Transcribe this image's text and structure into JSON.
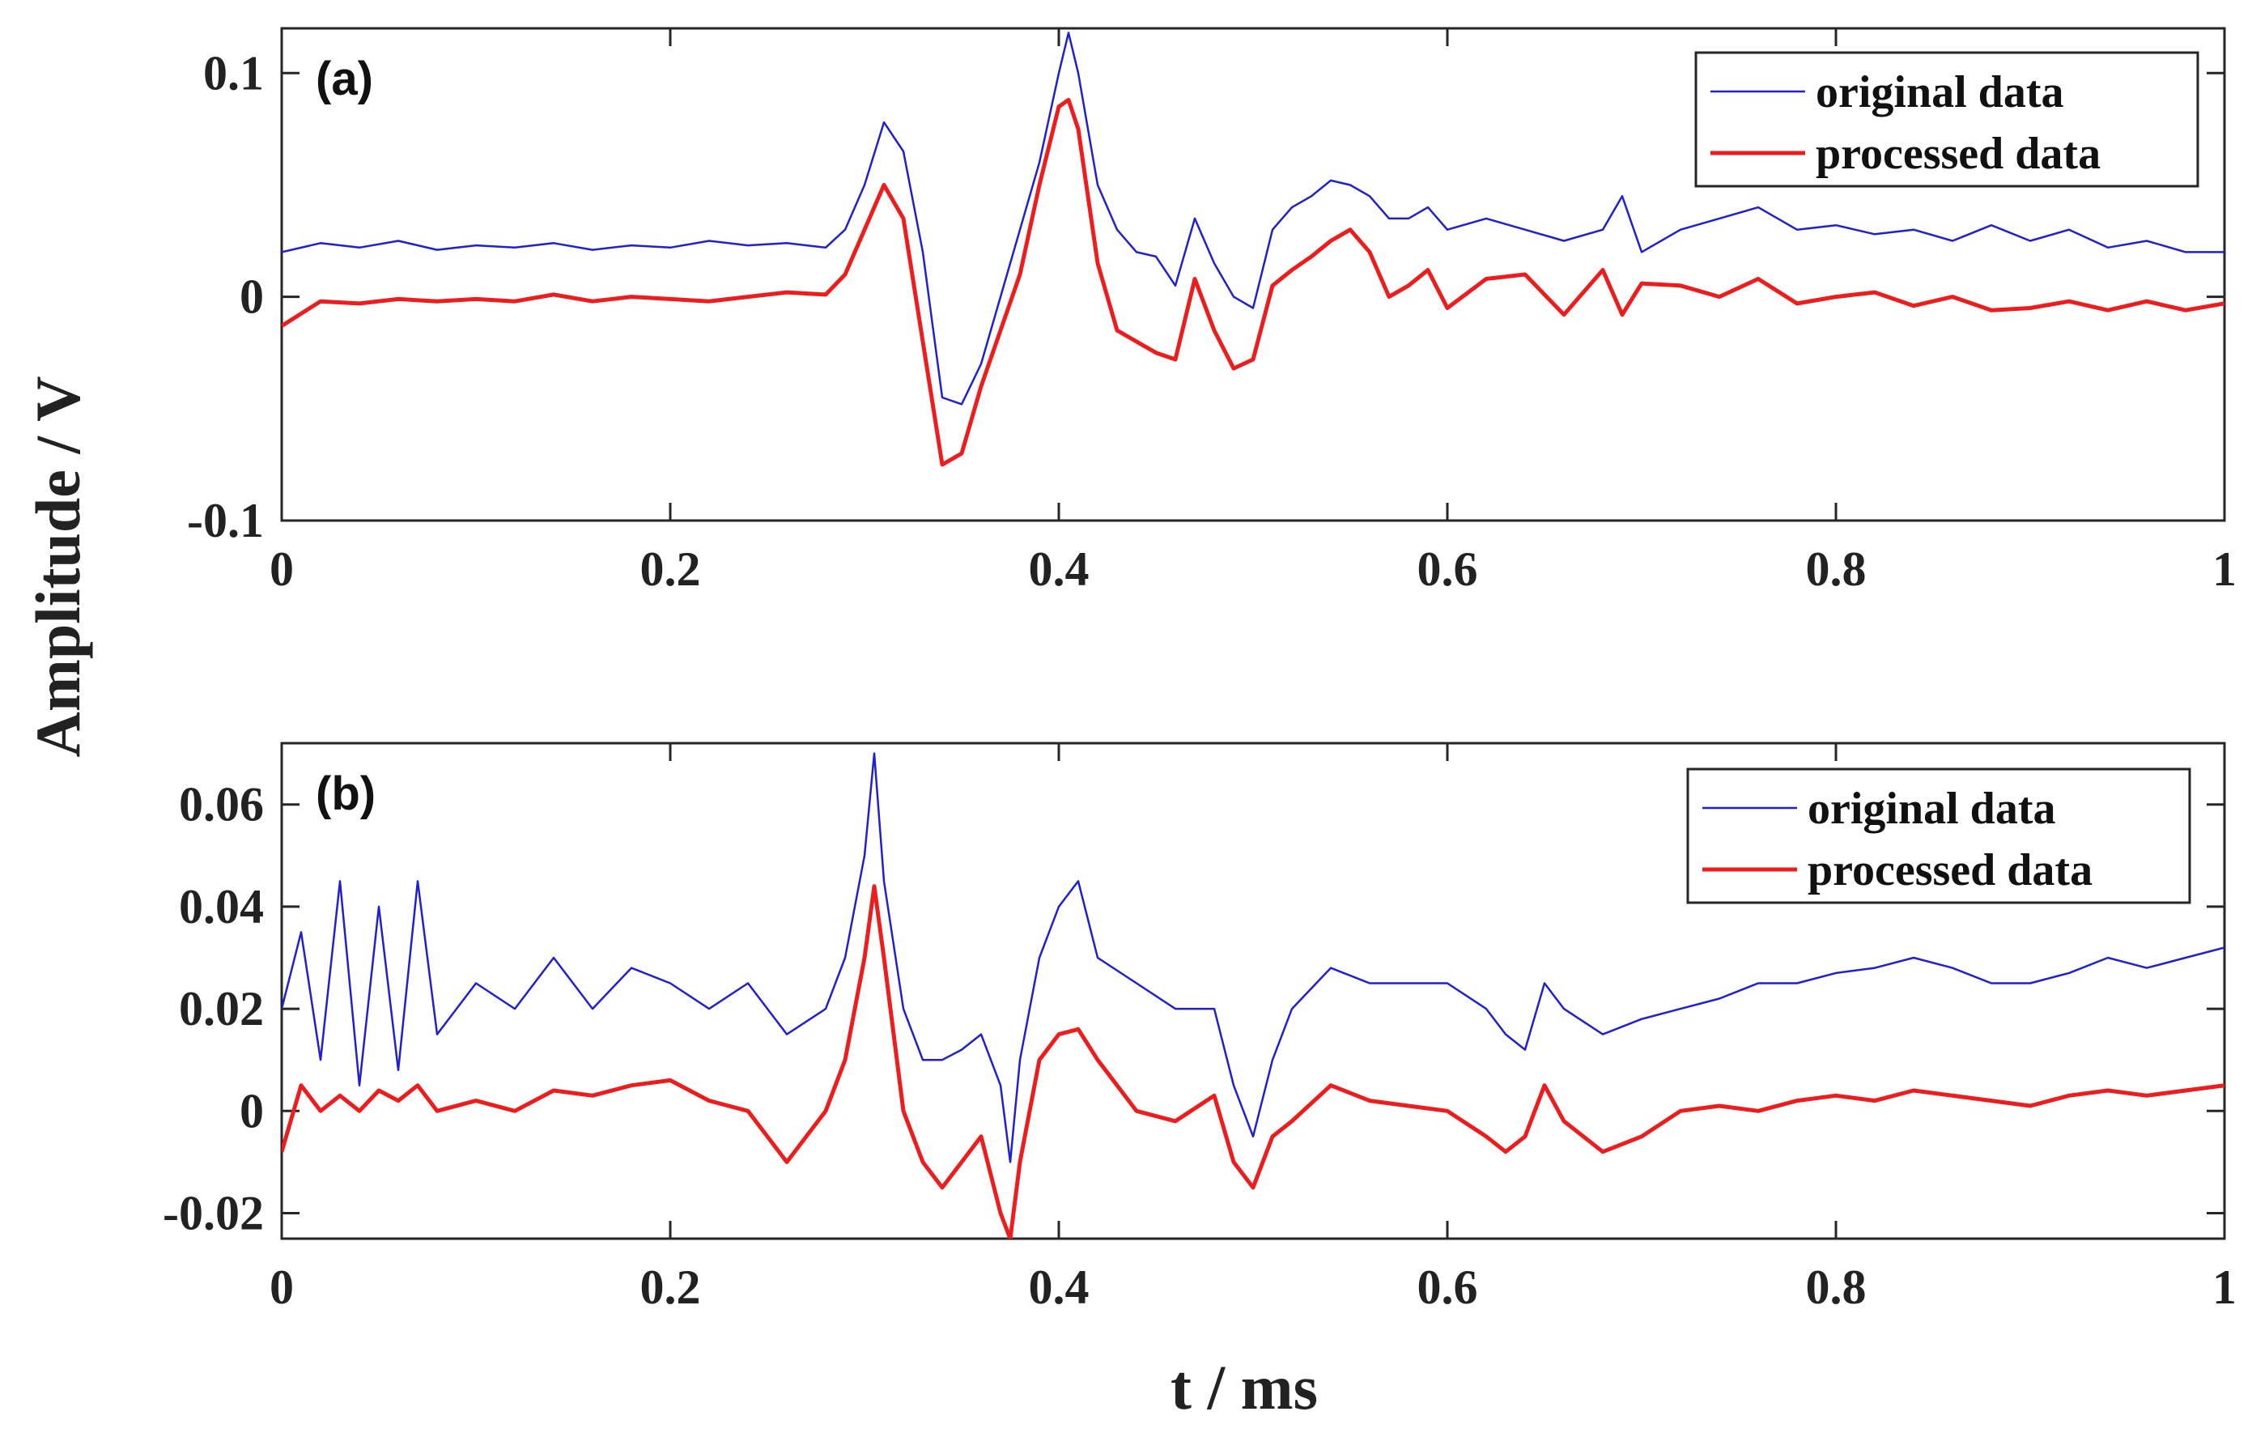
{
  "chart_data": [
    {
      "type": "line",
      "panel_label": "(a)",
      "xlim": [
        0,
        1
      ],
      "ylim": [
        -0.1,
        0.12
      ],
      "xticks": [
        "0",
        "0.2",
        "0.4",
        "0.6",
        "0.8",
        "1"
      ],
      "xtick_values": [
        0,
        0.2,
        0.4,
        0.6,
        0.8,
        1
      ],
      "yticks": [
        "-0.1",
        "0",
        "0.1"
      ],
      "ytick_values": [
        -0.1,
        0,
        0.1
      ],
      "legend_position": "top-right",
      "x": [
        0,
        0.02,
        0.04,
        0.06,
        0.08,
        0.1,
        0.12,
        0.14,
        0.16,
        0.18,
        0.2,
        0.22,
        0.24,
        0.26,
        0.28,
        0.29,
        0.3,
        0.31,
        0.32,
        0.33,
        0.34,
        0.35,
        0.36,
        0.37,
        0.38,
        0.39,
        0.4,
        0.405,
        0.41,
        0.42,
        0.43,
        0.44,
        0.45,
        0.46,
        0.47,
        0.48,
        0.49,
        0.5,
        0.51,
        0.52,
        0.53,
        0.54,
        0.55,
        0.56,
        0.57,
        0.58,
        0.59,
        0.6,
        0.62,
        0.64,
        0.66,
        0.68,
        0.69,
        0.7,
        0.72,
        0.74,
        0.76,
        0.78,
        0.8,
        0.82,
        0.84,
        0.86,
        0.88,
        0.9,
        0.92,
        0.94,
        0.96,
        0.98,
        1.0
      ],
      "series": [
        {
          "name": "original data",
          "color": "#1f1fd6",
          "values": [
            0.02,
            0.024,
            0.022,
            0.025,
            0.021,
            0.023,
            0.022,
            0.024,
            0.021,
            0.023,
            0.022,
            0.025,
            0.023,
            0.024,
            0.022,
            0.03,
            0.05,
            0.078,
            0.065,
            0.02,
            -0.045,
            -0.048,
            -0.03,
            0.0,
            0.03,
            0.06,
            0.1,
            0.118,
            0.1,
            0.05,
            0.03,
            0.02,
            0.018,
            0.005,
            0.035,
            0.015,
            0.0,
            -0.005,
            0.03,
            0.04,
            0.045,
            0.052,
            0.05,
            0.045,
            0.035,
            0.035,
            0.04,
            0.03,
            0.035,
            0.03,
            0.025,
            0.03,
            0.045,
            0.02,
            0.03,
            0.035,
            0.04,
            0.03,
            0.032,
            0.028,
            0.03,
            0.025,
            0.032,
            0.025,
            0.03,
            0.022,
            0.025,
            0.02,
            0.02
          ]
        },
        {
          "name": "processed data",
          "color": "#ee1c1c",
          "values": [
            -0.013,
            -0.002,
            -0.003,
            -0.001,
            -0.002,
            -0.001,
            -0.002,
            0.001,
            -0.002,
            0.0,
            -0.001,
            -0.002,
            0.0,
            0.002,
            0.001,
            0.01,
            0.03,
            0.05,
            0.035,
            -0.02,
            -0.075,
            -0.07,
            -0.04,
            -0.015,
            0.01,
            0.05,
            0.085,
            0.088,
            0.075,
            0.015,
            -0.015,
            -0.02,
            -0.025,
            -0.028,
            0.008,
            -0.015,
            -0.032,
            -0.028,
            0.005,
            0.012,
            0.018,
            0.025,
            0.03,
            0.02,
            0.0,
            0.005,
            0.012,
            -0.005,
            0.008,
            0.01,
            -0.008,
            0.012,
            -0.008,
            0.006,
            0.005,
            0.0,
            0.008,
            -0.003,
            0.0,
            0.002,
            -0.004,
            0.0,
            -0.006,
            -0.005,
            -0.002,
            -0.006,
            -0.002,
            -0.006,
            -0.003
          ]
        }
      ]
    },
    {
      "type": "line",
      "panel_label": "(b)",
      "xlim": [
        0,
        1
      ],
      "ylim": [
        -0.025,
        0.072
      ],
      "xticks": [
        "0",
        "0.2",
        "0.4",
        "0.6",
        "0.8",
        "1"
      ],
      "xtick_values": [
        0,
        0.2,
        0.4,
        0.6,
        0.8,
        1
      ],
      "yticks": [
        "-0.02",
        "0",
        "0.02",
        "0.04",
        "0.06"
      ],
      "ytick_values": [
        -0.02,
        0,
        0.02,
        0.04,
        0.06
      ],
      "legend_position": "top-right",
      "x": [
        0,
        0.01,
        0.02,
        0.03,
        0.04,
        0.05,
        0.06,
        0.07,
        0.08,
        0.1,
        0.12,
        0.14,
        0.16,
        0.18,
        0.2,
        0.22,
        0.24,
        0.26,
        0.28,
        0.29,
        0.3,
        0.305,
        0.31,
        0.32,
        0.33,
        0.34,
        0.35,
        0.36,
        0.37,
        0.375,
        0.38,
        0.39,
        0.4,
        0.41,
        0.42,
        0.44,
        0.46,
        0.48,
        0.49,
        0.5,
        0.51,
        0.52,
        0.54,
        0.56,
        0.58,
        0.6,
        0.62,
        0.63,
        0.64,
        0.65,
        0.66,
        0.68,
        0.7,
        0.72,
        0.74,
        0.76,
        0.78,
        0.8,
        0.82,
        0.84,
        0.86,
        0.88,
        0.9,
        0.92,
        0.94,
        0.96,
        0.98,
        1.0
      ],
      "series": [
        {
          "name": "original data",
          "color": "#1f1fd6",
          "values": [
            0.02,
            0.035,
            0.01,
            0.045,
            0.005,
            0.04,
            0.008,
            0.045,
            0.015,
            0.025,
            0.02,
            0.03,
            0.02,
            0.028,
            0.025,
            0.02,
            0.025,
            0.015,
            0.02,
            0.03,
            0.05,
            0.07,
            0.045,
            0.02,
            0.01,
            0.01,
            0.012,
            0.015,
            0.005,
            -0.01,
            0.01,
            0.03,
            0.04,
            0.045,
            0.03,
            0.025,
            0.02,
            0.02,
            0.005,
            -0.005,
            0.01,
            0.02,
            0.028,
            0.025,
            0.025,
            0.025,
            0.02,
            0.015,
            0.012,
            0.025,
            0.02,
            0.015,
            0.018,
            0.02,
            0.022,
            0.025,
            0.025,
            0.027,
            0.028,
            0.03,
            0.028,
            0.025,
            0.025,
            0.027,
            0.03,
            0.028,
            0.03,
            0.032
          ]
        },
        {
          "name": "processed data",
          "color": "#ee1c1c",
          "values": [
            -0.008,
            0.005,
            0.0,
            0.003,
            0.0,
            0.004,
            0.002,
            0.005,
            0.0,
            0.002,
            0.0,
            0.004,
            0.003,
            0.005,
            0.006,
            0.002,
            0.0,
            -0.01,
            0.0,
            0.01,
            0.03,
            0.044,
            0.03,
            0.0,
            -0.01,
            -0.015,
            -0.01,
            -0.005,
            -0.02,
            -0.025,
            -0.01,
            0.01,
            0.015,
            0.016,
            0.01,
            0.0,
            -0.002,
            0.003,
            -0.01,
            -0.015,
            -0.005,
            -0.002,
            0.005,
            0.002,
            0.001,
            0.0,
            -0.005,
            -0.008,
            -0.005,
            0.005,
            -0.002,
            -0.008,
            -0.005,
            0.0,
            0.001,
            0.0,
            0.002,
            0.003,
            0.002,
            0.004,
            0.003,
            0.002,
            0.001,
            0.003,
            0.004,
            0.003,
            0.004,
            0.005
          ]
        }
      ]
    }
  ],
  "axes": {
    "ylabel": "Amplitude / V",
    "xlabel": "t / ms"
  }
}
